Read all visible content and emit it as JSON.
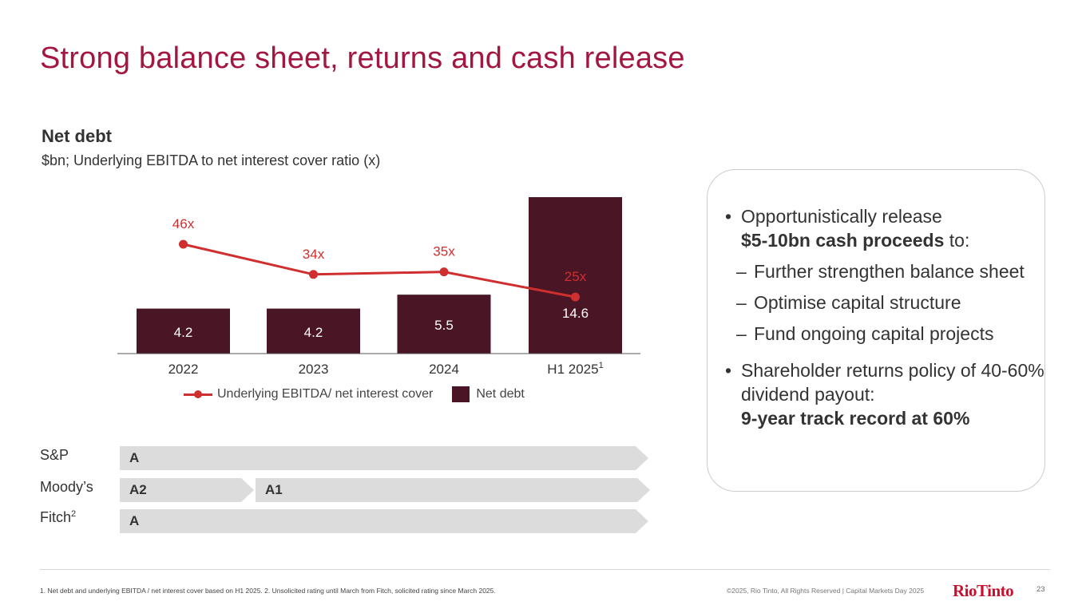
{
  "title": "Strong balance sheet, returns and cash release",
  "chart_data": {
    "type": "bar",
    "title": "Net debt",
    "subtitle": "$bn; Underlying EBITDA to net interest cover ratio (x)",
    "categories": [
      "2022",
      "2023",
      "2024",
      "H1 2025"
    ],
    "category_superscripts": [
      "",
      "",
      "",
      "1"
    ],
    "series": [
      {
        "name": "Net debt",
        "type": "bar",
        "color": "#4a1524",
        "values": [
          4.2,
          4.2,
          5.5,
          14.6
        ],
        "labels": [
          "4.2",
          "4.2",
          "5.5",
          "14.6"
        ]
      },
      {
        "name": "Underlying EBITDA/ net interest cover",
        "type": "line",
        "color": "#cf2f2f",
        "values": [
          46,
          34,
          35,
          25
        ],
        "labels": [
          "46x",
          "34x",
          "35x",
          "25x"
        ]
      }
    ],
    "legend": [
      "Underlying EBITDA/ net interest cover",
      "Net debt"
    ],
    "legend_position": "bottom",
    "grid": false
  },
  "ratings": [
    {
      "agency": "S&P",
      "sup": "",
      "segments": [
        "A"
      ]
    },
    {
      "agency": "Moody’s",
      "sup": "",
      "segments": [
        "A2",
        "A1"
      ]
    },
    {
      "agency": "Fitch",
      "sup": "2",
      "segments": [
        "A"
      ]
    }
  ],
  "panel": {
    "b1_text": "Opportunistically release",
    "b1_bold": "$5-10bn cash proceeds",
    "b1_tail": " to:",
    "sub1": "Further strengthen balance sheet",
    "sub2": "Optimise capital structure",
    "sub3": "Fund ongoing capital projects",
    "b2_text": "Shareholder returns policy of 40-60% dividend payout:",
    "b2_bold": "9-year track record at 60%"
  },
  "footer": {
    "footnote": "1. Net debt and underlying EBITDA / net interest cover based on H1 2025. 2. Unsolicited rating until March from Fitch, solicited rating since March 2025.",
    "copyright": "©2025, Rio Tinto, All Rights Reserved  |  Capital Markets Day 2025",
    "logo": "RioTinto",
    "page": "23"
  },
  "colors": {
    "accent": "#a3163f",
    "bar": "#4a1524",
    "line": "#cf2f2f",
    "rating_bar": "#dcdcdc"
  }
}
